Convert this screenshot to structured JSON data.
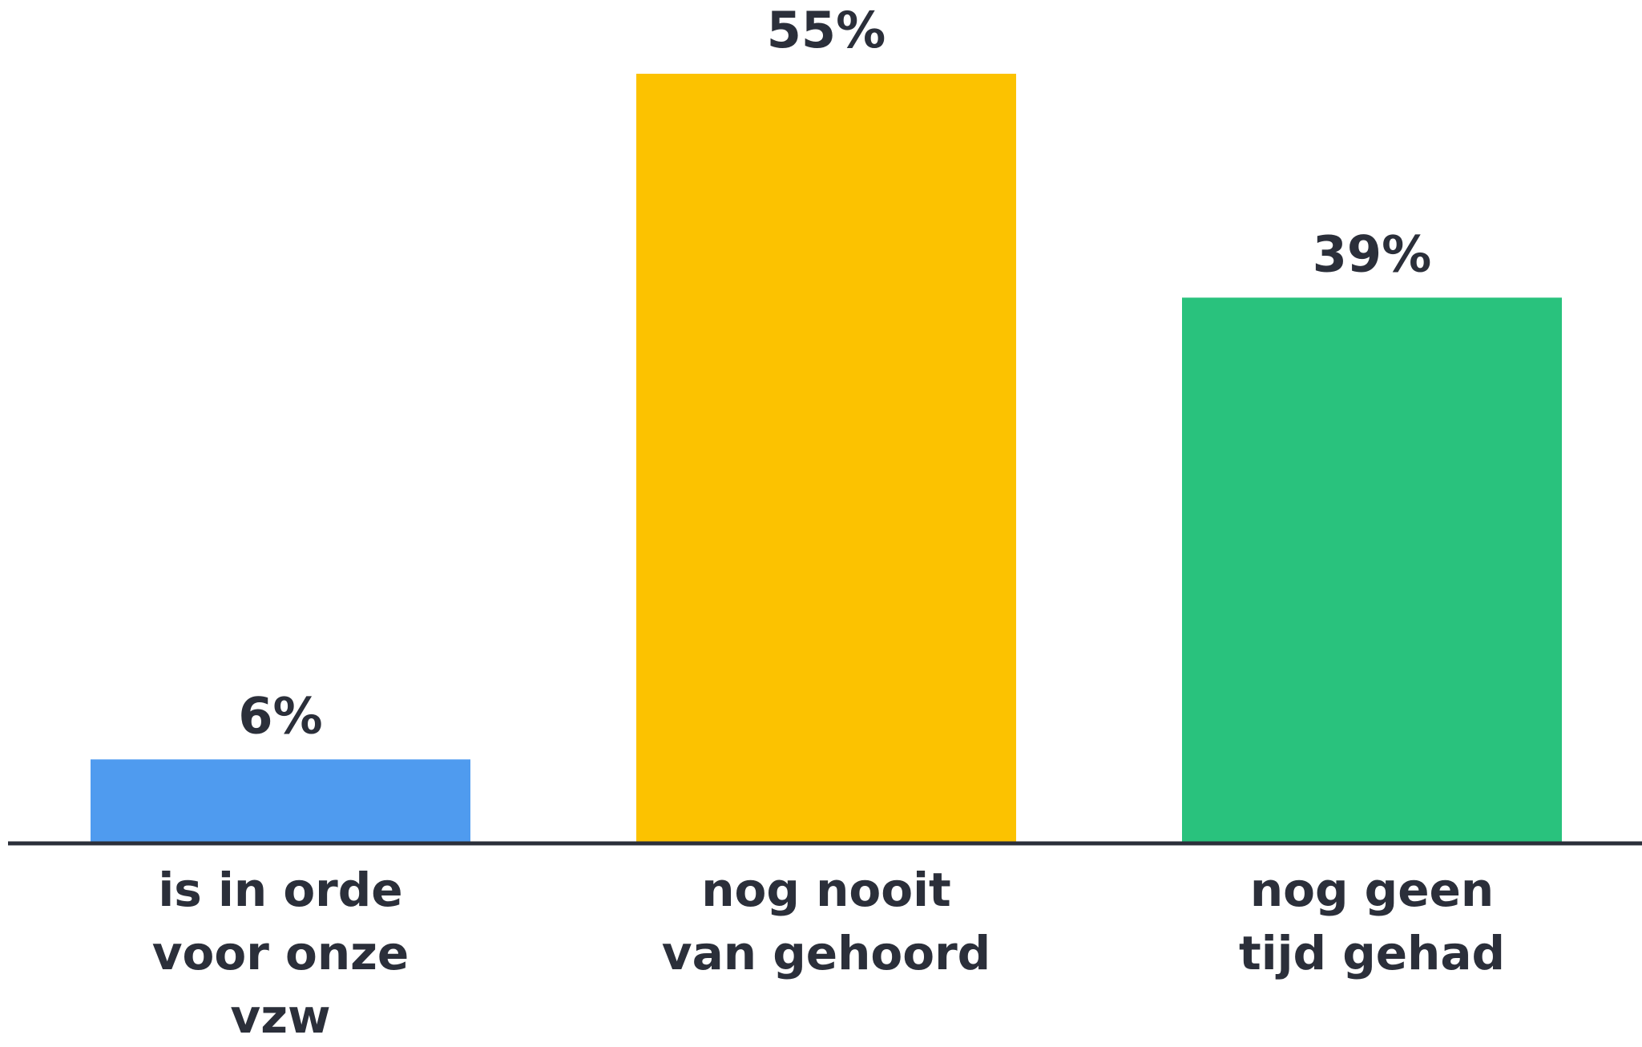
{
  "chart_data": {
    "type": "bar",
    "categories": [
      "is in orde voor onze vzw",
      "nog nooit van gehoord",
      "nog geen tijd gehad"
    ],
    "values": [
      6,
      55,
      39
    ],
    "value_labels": [
      "6%",
      "55%",
      "39%"
    ],
    "colors": [
      "#4f9bef",
      "#fcc200",
      "#29c27d"
    ]
  }
}
